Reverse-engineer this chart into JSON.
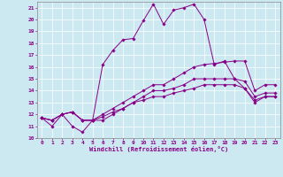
{
  "xlabel": "Windchill (Refroidissement éolien,°C)",
  "background_color": "#cce8f0",
  "line_color": "#880088",
  "xlim": [
    -0.5,
    23.5
  ],
  "ylim": [
    10,
    21.5
  ],
  "yticks": [
    10,
    11,
    12,
    13,
    14,
    15,
    16,
    17,
    18,
    19,
    20,
    21
  ],
  "xticks": [
    0,
    1,
    2,
    3,
    4,
    5,
    6,
    7,
    8,
    9,
    10,
    11,
    12,
    13,
    14,
    15,
    16,
    17,
    18,
    19,
    20,
    21,
    22,
    23
  ],
  "series": [
    [
      11.7,
      11.0,
      12.0,
      11.0,
      10.5,
      11.5,
      16.2,
      17.4,
      18.3,
      18.4,
      19.9,
      21.3,
      19.6,
      20.8,
      21.0,
      21.3,
      20.0,
      16.2,
      16.5,
      15.0,
      14.2,
      13.0,
      13.5,
      13.5
    ],
    [
      11.7,
      11.5,
      12.0,
      12.2,
      11.5,
      11.5,
      11.5,
      12.0,
      12.5,
      13.0,
      13.2,
      13.5,
      13.5,
      13.8,
      14.0,
      14.2,
      14.5,
      14.5,
      14.5,
      14.5,
      14.2,
      13.2,
      13.5,
      13.5
    ],
    [
      11.7,
      11.5,
      12.0,
      12.2,
      11.5,
      11.5,
      11.8,
      12.2,
      12.5,
      13.0,
      13.5,
      14.0,
      14.0,
      14.2,
      14.5,
      15.0,
      15.0,
      15.0,
      15.0,
      15.0,
      14.8,
      13.5,
      13.8,
      13.8
    ],
    [
      11.7,
      11.5,
      12.0,
      12.2,
      11.5,
      11.5,
      12.0,
      12.5,
      13.0,
      13.5,
      14.0,
      14.5,
      14.5,
      15.0,
      15.5,
      16.0,
      16.2,
      16.3,
      16.4,
      16.5,
      16.5,
      14.0,
      14.5,
      14.5
    ]
  ]
}
